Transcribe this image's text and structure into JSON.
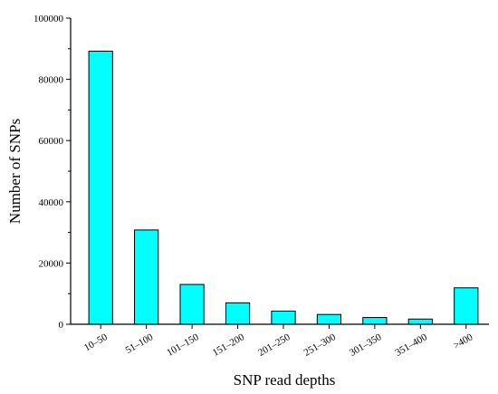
{
  "chart_data": {
    "type": "bar",
    "title": "",
    "xlabel": "SNP read depths",
    "ylabel": "Number of SNPs",
    "categories": [
      "10–50",
      "51–100",
      "101–150",
      "151–200",
      "201–250",
      "251–300",
      "301–350",
      "351–400",
      ">400"
    ],
    "values": [
      89200,
      30800,
      13000,
      7000,
      4300,
      3200,
      2200,
      1700,
      11900
    ],
    "ylim": [
      0,
      100000
    ],
    "yticks": [
      0,
      20000,
      40000,
      60000,
      80000,
      100000
    ],
    "grid": false,
    "legend": "none",
    "bar_color": "#00ffff",
    "edge_color": "#000000"
  }
}
